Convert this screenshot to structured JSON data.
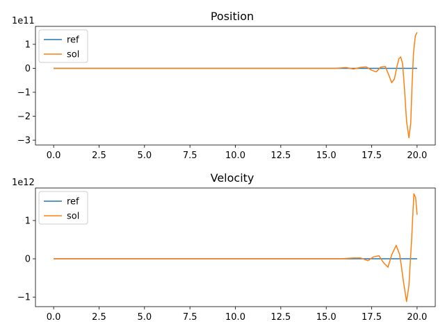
{
  "chart_data": [
    {
      "type": "line",
      "title": "Position",
      "xlabel": "",
      "ylabel": "",
      "xlim": [
        -1.0,
        21.0
      ],
      "ylim": [
        -3.2,
        1.75
      ],
      "y_offset_label": "1e11",
      "xticks": [
        0,
        2.5,
        5,
        7.5,
        10,
        12.5,
        15,
        17.5,
        20
      ],
      "xtick_labels": [
        "0.0",
        "2.5",
        "5.0",
        "7.5",
        "10.0",
        "12.5",
        "15.0",
        "17.5",
        "20.0"
      ],
      "yticks": [
        -3,
        -2,
        -1,
        0,
        1
      ],
      "ytick_labels": [
        "−3",
        "−2",
        "−1",
        "0",
        "1"
      ],
      "grid": false,
      "legend": "top-left",
      "series": [
        {
          "name": "ref",
          "color": "#1f77b4",
          "x": [
            0,
            20
          ],
          "y": [
            0,
            0
          ]
        },
        {
          "name": "sol",
          "color": "#ff7f0e",
          "x": [
            0,
            14,
            15.5,
            16.1,
            16.5,
            16.9,
            17.2,
            17.5,
            17.75,
            18.0,
            18.25,
            18.45,
            18.6,
            18.75,
            18.9,
            19.0,
            19.1,
            19.2,
            19.3,
            19.42,
            19.55,
            19.65,
            19.72,
            19.8,
            19.9,
            20.0
          ],
          "y": [
            0,
            0,
            0,
            0.03,
            -0.03,
            0.04,
            0.06,
            -0.08,
            -0.15,
            0.05,
            0.08,
            -0.3,
            -0.6,
            -0.45,
            0.1,
            0.4,
            0.47,
            0.2,
            -0.8,
            -2.2,
            -2.9,
            -2.3,
            -0.8,
            0.6,
            1.35,
            1.5
          ]
        }
      ]
    },
    {
      "type": "line",
      "title": "Velocity",
      "xlabel": "",
      "ylabel": "",
      "xlim": [
        -1.0,
        21.0
      ],
      "ylim": [
        -1.25,
        1.85
      ],
      "y_offset_label": "1e12",
      "xticks": [
        0,
        2.5,
        5,
        7.5,
        10,
        12.5,
        15,
        17.5,
        20
      ],
      "xtick_labels": [
        "0.0",
        "2.5",
        "5.0",
        "7.5",
        "10.0",
        "12.5",
        "15.0",
        "17.5",
        "20.0"
      ],
      "yticks": [
        -1,
        0,
        1
      ],
      "ytick_labels": [
        "−1",
        "0",
        "1"
      ],
      "grid": false,
      "legend": "top-left",
      "series": [
        {
          "name": "ref",
          "color": "#1f77b4",
          "x": [
            0,
            20
          ],
          "y": [
            0,
            0
          ]
        },
        {
          "name": "sol",
          "color": "#ff7f0e",
          "x": [
            0,
            14,
            15.8,
            16.5,
            16.9,
            17.3,
            17.6,
            17.9,
            18.15,
            18.4,
            18.6,
            18.85,
            19.05,
            19.25,
            19.42,
            19.55,
            19.7,
            19.82,
            19.92,
            20.0
          ],
          "y": [
            0,
            0,
            0,
            0.02,
            0.02,
            -0.05,
            0.05,
            0.08,
            -0.1,
            -0.22,
            0.1,
            0.35,
            0.1,
            -0.6,
            -1.12,
            -0.7,
            0.5,
            1.7,
            1.6,
            1.15
          ]
        }
      ]
    }
  ]
}
